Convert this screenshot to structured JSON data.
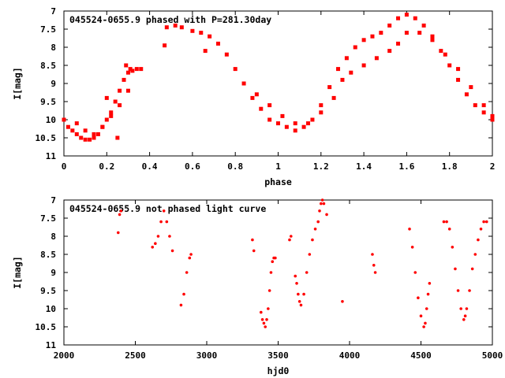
{
  "page": {
    "background": "#ffffff",
    "point_color": "#ff0000"
  },
  "chart_data": [
    {
      "type": "scatter",
      "title": "045524-0655.9 phased with P=281.30day",
      "xlabel": "phase",
      "ylabel": "I[mag]",
      "xlim": [
        0,
        2
      ],
      "ylim": [
        11,
        7
      ],
      "y_inverted": true,
      "xticks": [
        "0",
        "0.2",
        "0.4",
        "0.6",
        "0.8",
        "1",
        "1.2",
        "1.4",
        "1.6",
        "1.8",
        "2"
      ],
      "yticks": [
        "7",
        "7.5",
        "8",
        "8.5",
        "9",
        "9.5",
        "10",
        "10.5",
        "11"
      ],
      "grid": false,
      "marker": "filled-square",
      "series": [
        {
          "color": "#ff0000",
          "x": [
            0.0,
            0.02,
            0.04,
            0.06,
            0.08,
            0.1,
            0.12,
            0.14,
            0.16,
            0.18,
            0.2,
            0.22,
            0.24,
            0.26,
            0.28,
            0.3,
            0.32,
            0.34,
            0.36,
            0.06,
            0.1,
            0.14,
            0.18,
            0.22,
            0.26,
            0.3,
            0.48,
            0.52,
            0.55,
            0.6,
            0.64,
            0.68,
            0.72,
            0.76,
            0.8,
            0.84,
            0.88,
            0.92,
            0.96,
            1.0,
            1.04,
            1.08,
            1.12,
            1.16,
            1.2,
            1.24,
            1.28,
            1.32,
            1.36,
            1.4,
            1.44,
            1.48,
            1.52,
            1.56,
            1.6,
            1.64,
            1.68,
            1.72,
            1.76,
            1.8,
            1.84,
            1.88,
            1.92,
            1.96,
            2.0,
            0.9,
            0.96,
            1.02,
            1.08,
            1.14,
            1.2,
            1.26,
            1.3,
            1.34,
            1.4,
            1.46,
            1.52,
            1.56,
            1.6,
            1.66,
            1.72,
            1.78,
            1.84,
            1.9,
            1.96,
            2.0,
            0.29,
            0.31,
            0.25,
            0.47,
            0.66,
            0.2
          ],
          "y": [
            10.0,
            10.2,
            10.3,
            10.4,
            10.5,
            10.55,
            10.55,
            10.5,
            10.4,
            10.2,
            10.0,
            9.8,
            9.5,
            9.2,
            8.9,
            8.7,
            8.65,
            8.6,
            8.6,
            10.1,
            10.3,
            10.4,
            10.2,
            9.9,
            9.6,
            9.2,
            7.45,
            7.4,
            7.45,
            7.55,
            7.6,
            7.7,
            7.9,
            8.2,
            8.6,
            9.0,
            9.4,
            9.7,
            10.0,
            10.1,
            10.2,
            10.3,
            10.2,
            10.0,
            9.6,
            9.1,
            8.6,
            8.3,
            8.0,
            7.8,
            7.7,
            7.6,
            7.4,
            7.2,
            7.1,
            7.2,
            7.4,
            7.7,
            8.1,
            8.5,
            8.9,
            9.3,
            9.6,
            9.8,
            10.0,
            9.3,
            9.6,
            9.9,
            10.1,
            10.1,
            9.8,
            9.4,
            8.9,
            8.7,
            8.5,
            8.3,
            8.1,
            7.9,
            7.6,
            7.6,
            7.8,
            8.2,
            8.6,
            9.1,
            9.6,
            9.9,
            8.5,
            8.6,
            10.5,
            7.95,
            8.1,
            9.4
          ]
        }
      ]
    },
    {
      "type": "scatter",
      "title": "045524-0655.9 not phased light curve",
      "xlabel": "hjd0",
      "ylabel": "I[mag]",
      "xlim": [
        2000,
        5000
      ],
      "ylim": [
        11,
        7
      ],
      "y_inverted": true,
      "xticks": [
        "2000",
        "2500",
        "3000",
        "3500",
        "4000",
        "4500",
        "5000"
      ],
      "yticks": [
        "7",
        "7.5",
        "8",
        "8.5",
        "9",
        "9.5",
        "10",
        "10.5",
        "11"
      ],
      "grid": false,
      "marker": "filled-circle",
      "series": [
        {
          "color": "#ff0000",
          "x": [
            2380,
            2390,
            2400,
            2620,
            2640,
            2660,
            2680,
            2700,
            2720,
            2740,
            2760,
            2820,
            2840,
            2860,
            2880,
            2890,
            3320,
            3330,
            3380,
            3390,
            3400,
            3410,
            3420,
            3430,
            3440,
            3450,
            3460,
            3470,
            3480,
            3580,
            3590,
            3620,
            3630,
            3640,
            3650,
            3660,
            3680,
            3700,
            3720,
            3740,
            3760,
            3780,
            3790,
            3800,
            3810,
            3820,
            3840,
            3950,
            4160,
            4170,
            4180,
            4420,
            4440,
            4460,
            4480,
            4500,
            4520,
            4530,
            4540,
            4550,
            4560,
            4660,
            4680,
            4700,
            4720,
            4740,
            4760,
            4780,
            4800,
            4810,
            4820,
            4840,
            4860,
            4880,
            4900,
            4920,
            4940,
            4960
          ],
          "y": [
            7.9,
            7.4,
            7.3,
            8.3,
            8.2,
            8.0,
            7.6,
            7.3,
            7.6,
            8.0,
            8.4,
            9.9,
            9.6,
            9.0,
            8.6,
            8.5,
            8.1,
            8.4,
            10.1,
            10.3,
            10.4,
            10.5,
            10.3,
            10.0,
            9.5,
            9.0,
            8.7,
            8.6,
            8.6,
            8.1,
            8.0,
            9.1,
            9.3,
            9.6,
            9.8,
            9.9,
            9.6,
            9.0,
            8.5,
            8.1,
            7.8,
            7.6,
            7.3,
            7.1,
            7.0,
            7.1,
            7.4,
            9.8,
            8.5,
            8.8,
            9.0,
            7.8,
            8.3,
            9.0,
            9.7,
            10.2,
            10.5,
            10.4,
            10.0,
            9.6,
            9.3,
            7.6,
            7.6,
            7.8,
            8.3,
            8.9,
            9.5,
            10.0,
            10.3,
            10.2,
            10.0,
            9.5,
            8.9,
            8.5,
            8.1,
            7.8,
            7.6,
            7.6
          ]
        }
      ]
    }
  ]
}
